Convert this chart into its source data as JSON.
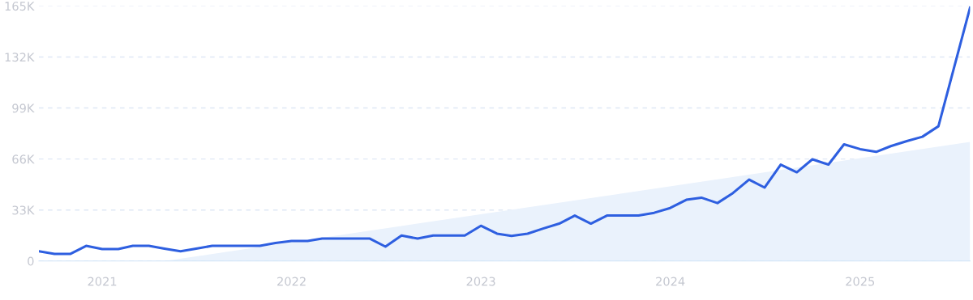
{
  "chart_data": {
    "type": "line",
    "x": [
      "2020-09",
      "2020-10",
      "2020-11",
      "2020-12",
      "2021-01",
      "2021-02",
      "2021-03",
      "2021-04",
      "2021-05",
      "2021-06",
      "2021-07",
      "2021-08",
      "2021-09",
      "2021-10",
      "2021-11",
      "2021-12",
      "2022-01",
      "2022-02",
      "2022-03",
      "2022-04",
      "2022-05",
      "2022-06",
      "2022-07",
      "2022-08",
      "2022-09",
      "2022-10",
      "2022-11",
      "2022-12",
      "2023-01",
      "2023-02",
      "2023-03",
      "2023-04",
      "2023-05",
      "2023-06",
      "2023-07",
      "2023-08",
      "2023-09",
      "2023-10",
      "2023-11",
      "2023-12",
      "2024-01",
      "2024-02",
      "2024-03",
      "2024-04",
      "2024-05",
      "2024-06",
      "2024-07",
      "2024-08",
      "2024-09",
      "2024-10",
      "2024-11",
      "2024-12",
      "2025-01",
      "2025-02",
      "2025-03",
      "2025-04",
      "2025-05",
      "2025-06",
      "2025-07",
      "2025-08"
    ],
    "series": [
      {
        "type": "area",
        "color": "#eaf2fc",
        "x": [
          "2021-05",
          "2025-08"
        ],
        "values": [
          0,
          77000
        ]
      },
      {
        "color": "#2e5fe0",
        "values": [
          6300,
          4600,
          4600,
          9800,
          7700,
          7700,
          9800,
          9800,
          8000,
          6300,
          8000,
          9800,
          9800,
          9800,
          9800,
          11600,
          13000,
          13000,
          14500,
          14500,
          14500,
          14500,
          9300,
          16500,
          14500,
          16500,
          16500,
          16500,
          22800,
          17700,
          16200,
          17700,
          21000,
          24200,
          29400,
          24200,
          29400,
          29400,
          29400,
          31200,
          34300,
          39600,
          41000,
          37500,
          44000,
          52700,
          47500,
          62400,
          57400,
          65800,
          62400,
          75500,
          72400,
          70600,
          74300,
          77600,
          80400,
          87200,
          125000,
          164000
        ]
      }
    ],
    "xlim": [
      "2020-09",
      "2025-08"
    ],
    "xticks": [
      {
        "value": "2021-01",
        "label": "2021"
      },
      {
        "value": "2022-01",
        "label": "2022"
      },
      {
        "value": "2023-01",
        "label": "2023"
      },
      {
        "value": "2024-01",
        "label": "2024"
      },
      {
        "value": "2025-01",
        "label": "2025"
      }
    ],
    "ylim": [
      0,
      165000
    ],
    "yticks": [
      {
        "value": 0,
        "label": "0"
      },
      {
        "value": 33000,
        "label": "33K"
      },
      {
        "value": 66000,
        "label": "66K"
      },
      {
        "value": 99000,
        "label": "99K"
      },
      {
        "value": 132000,
        "label": "132K"
      },
      {
        "value": 165000,
        "label": "165K"
      }
    ],
    "grid": "y",
    "marker": "none",
    "line_style": "solid"
  }
}
